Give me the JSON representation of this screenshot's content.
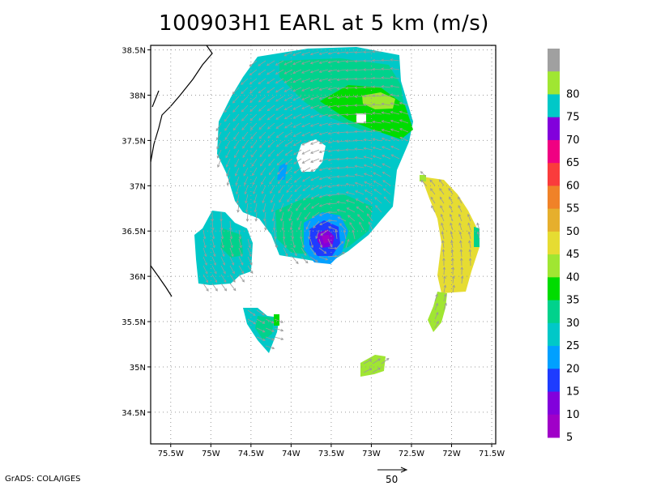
{
  "title": "100903H1 EARL at 5 km (m/s)",
  "footer": "GrADS: COLA/IGES",
  "map": {
    "lon_range": [
      -75.75,
      -71.45
    ],
    "lat_range": [
      34.15,
      38.55
    ],
    "lon_ticks": [
      {
        "v": -75.5,
        "label": "75.5W"
      },
      {
        "v": -75.0,
        "label": "75W"
      },
      {
        "v": -74.5,
        "label": "74.5W"
      },
      {
        "v": -74.0,
        "label": "74W"
      },
      {
        "v": -73.5,
        "label": "73.5W"
      },
      {
        "v": -73.0,
        "label": "73W"
      },
      {
        "v": -72.5,
        "label": "72.5W"
      },
      {
        "v": -72.0,
        "label": "72W"
      },
      {
        "v": -71.5,
        "label": "71.5W"
      }
    ],
    "lat_ticks": [
      {
        "v": 38.5,
        "label": "38.5N"
      },
      {
        "v": 38.0,
        "label": "38N"
      },
      {
        "v": 37.5,
        "label": "37.5N"
      },
      {
        "v": 37.0,
        "label": "37N"
      },
      {
        "v": 36.5,
        "label": "36.5N"
      },
      {
        "v": 36.0,
        "label": "36N"
      },
      {
        "v": 35.5,
        "label": "35.5N"
      },
      {
        "v": 35.0,
        "label": "35N"
      },
      {
        "v": 34.5,
        "label": "34.5N"
      }
    ],
    "storm_center": {
      "lon": -73.5,
      "lat": 36.42
    },
    "reference_vector": {
      "label": "50"
    }
  },
  "colorbar": {
    "levels": [
      {
        "label": "",
        "color": "#a0a0a0"
      },
      {
        "label": "80",
        "color": "#a0e632"
      },
      {
        "label": "75",
        "color": "#00c8c8"
      },
      {
        "label": "70",
        "color": "#8200dc"
      },
      {
        "label": "65",
        "color": "#f00082"
      },
      {
        "label": "60",
        "color": "#fa3c3c"
      },
      {
        "label": "55",
        "color": "#f08228"
      },
      {
        "label": "50",
        "color": "#e6af2d"
      },
      {
        "label": "45",
        "color": "#e6dc32"
      },
      {
        "label": "40",
        "color": "#a0e632"
      },
      {
        "label": "35",
        "color": "#00dc00"
      },
      {
        "label": "30",
        "color": "#00d28c"
      },
      {
        "label": "25",
        "color": "#00c8c8"
      },
      {
        "label": "20",
        "color": "#00a0ff"
      },
      {
        "label": "15",
        "color": "#1e3cff"
      },
      {
        "label": "10",
        "color": "#8200dc"
      },
      {
        "label": "5",
        "color": "#a000c8"
      }
    ]
  }
}
